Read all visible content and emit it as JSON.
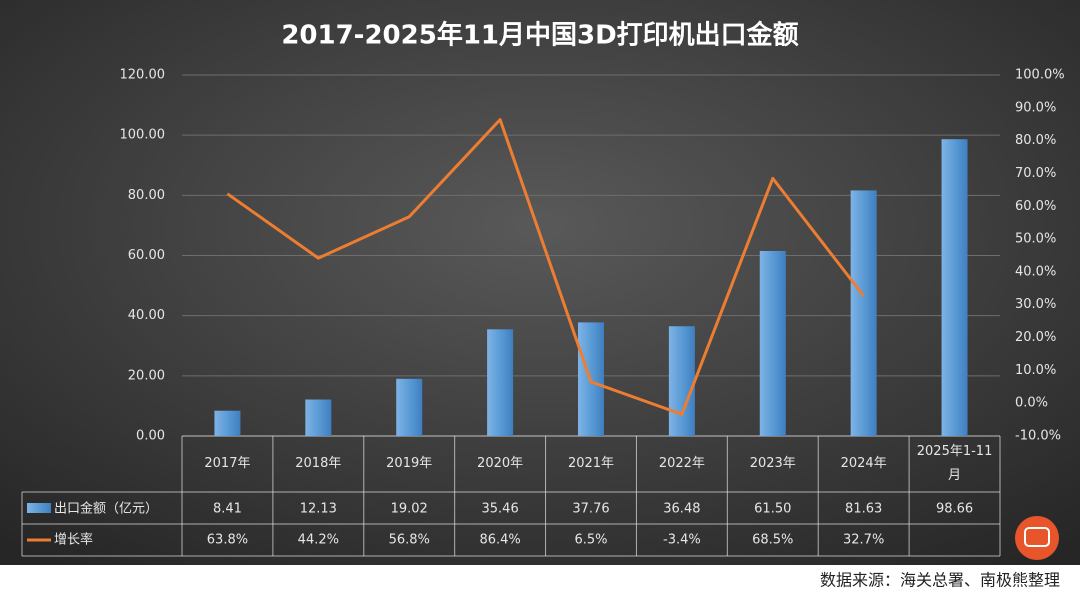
{
  "chart_data": {
    "type": "bar",
    "title": "2017-2025年11月中国3D打印机出口金额",
    "categories": [
      "2017年",
      "2018年",
      "2019年",
      "2020年",
      "2021年",
      "2022年",
      "2023年",
      "2024年",
      "2025年1-11月"
    ],
    "series": [
      {
        "name": "出口金额（亿元）",
        "color": "#5b9bd5",
        "values": [
          8.41,
          12.13,
          19.02,
          35.46,
          37.76,
          36.48,
          61.5,
          81.63,
          98.66
        ],
        "value_labels": [
          "8.41",
          "12.13",
          "19.02",
          "35.46",
          "37.76",
          "36.48",
          "61.50",
          "81.63",
          "98.66"
        ]
      },
      {
        "name": "增长率",
        "color": "#ed7d31",
        "type": "line",
        "axis": "y2",
        "values": [
          63.8,
          44.2,
          56.8,
          86.4,
          6.5,
          -3.4,
          68.5,
          32.7,
          null
        ],
        "value_labels": [
          "63.8%",
          "44.2%",
          "56.8%",
          "86.4%",
          "6.5%",
          "-3.4%",
          "68.5%",
          "32.7%",
          null
        ]
      }
    ],
    "ylim": [
      0,
      120
    ],
    "yticks": [
      {
        "value": 0,
        "label": "0.00"
      },
      {
        "value": 20,
        "label": "20.00"
      },
      {
        "value": 40,
        "label": "40.00"
      },
      {
        "value": 60,
        "label": "60.00"
      },
      {
        "value": 80,
        "label": "80.00"
      },
      {
        "value": 100,
        "label": "100.00"
      },
      {
        "value": 120,
        "label": "120.00"
      }
    ],
    "y2lim": [
      -10,
      100
    ],
    "y2ticks": [
      {
        "value": -10,
        "label": "-10.0%"
      },
      {
        "value": 0,
        "label": "0.0%"
      },
      {
        "value": 10,
        "label": "10.0%"
      },
      {
        "value": 20,
        "label": "20.0%"
      },
      {
        "value": 30,
        "label": "30.0%"
      },
      {
        "value": 40,
        "label": "40.0%"
      },
      {
        "value": 50,
        "label": "50.0%"
      },
      {
        "value": 60,
        "label": "60.0%"
      },
      {
        "value": 70,
        "label": "70.0%"
      },
      {
        "value": 80,
        "label": "80.0%"
      },
      {
        "value": 90,
        "label": "90.0%"
      },
      {
        "value": 100,
        "label": "100.0%"
      }
    ],
    "grid": true,
    "source": "数据来源：海关总署、南极熊整理"
  }
}
